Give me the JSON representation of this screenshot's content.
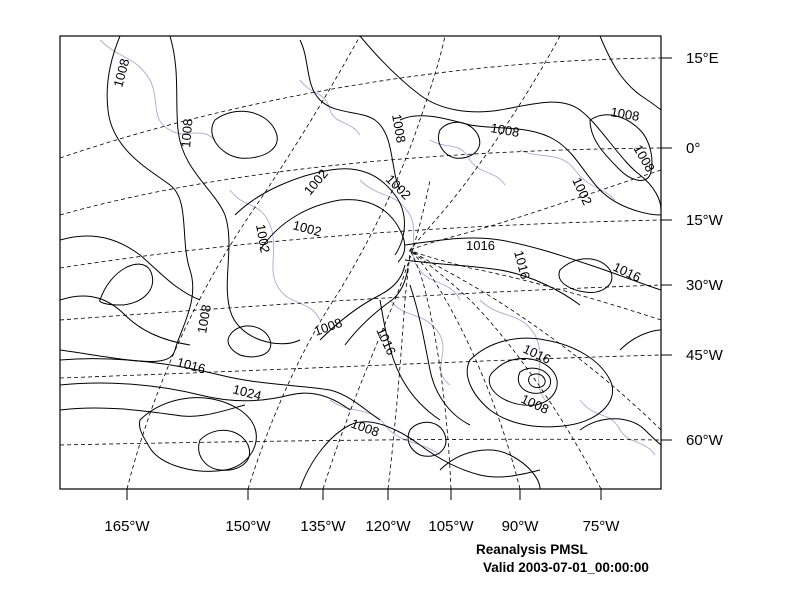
{
  "map": {
    "lat_labels": [
      "15°E",
      "0°",
      "15°W",
      "30°W",
      "45°W",
      "60°W"
    ],
    "lon_labels": [
      "165°W",
      "150°W",
      "135°W",
      "120°W",
      "105°W",
      "90°W",
      "75°W"
    ],
    "contour_labels": [
      "1008",
      "1008",
      "1008",
      "1008",
      "1008",
      "1008",
      "1002",
      "1002",
      "1002",
      "1002",
      "1002",
      "1016",
      "1016",
      "1016",
      "1016",
      "1016",
      "1008",
      "1016",
      "1024",
      "1008",
      "1016",
      "1008",
      "1008"
    ],
    "title": "Reanalysis PMSL",
    "valid": "Valid 2003-07-01_00:00:00",
    "colors": {
      "contour": "#000000",
      "coastline": "#b7a2d6",
      "background": "#ffffff"
    }
  }
}
